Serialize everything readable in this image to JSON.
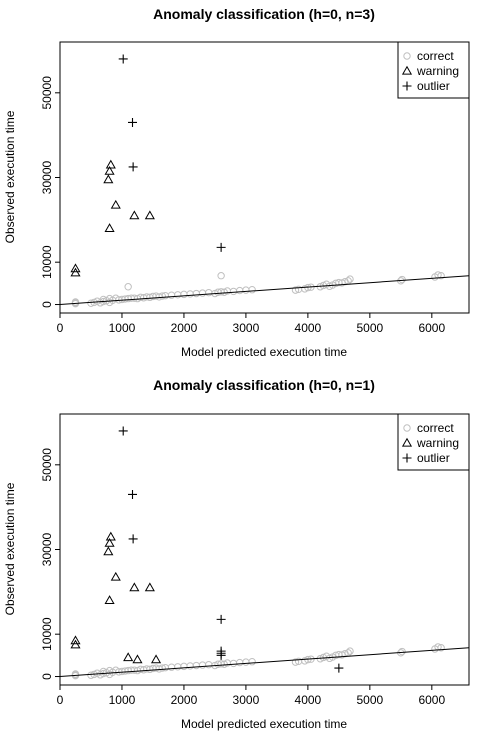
{
  "chart_data": [
    {
      "type": "scatter",
      "title": "Anomaly classification (h=0, n=3)",
      "xlabel": "Model predicted execution time",
      "ylabel": "Observed execution time",
      "xlim": [
        0,
        6600
      ],
      "ylim": [
        -2000,
        62000
      ],
      "xticks": [
        0,
        1000,
        2000,
        3000,
        4000,
        5000,
        6000
      ],
      "xtick_labels": [
        "0",
        "1000",
        "2000",
        "3000",
        "4000",
        "5000",
        "6000"
      ],
      "yticks": [
        0,
        10000,
        30000,
        50000
      ],
      "ytick_labels": [
        "0",
        "10000",
        "30000",
        "50000"
      ],
      "legend": {
        "position": "top-right",
        "entries": [
          "correct",
          "warning",
          "outlier"
        ]
      },
      "fit_line": {
        "x": [
          0,
          6600
        ],
        "y": [
          0,
          6800
        ]
      },
      "series": [
        {
          "name": "correct",
          "marker": "circle",
          "color": "#c0c0c0",
          "x": [
            250,
            250,
            250,
            500,
            550,
            600,
            650,
            700,
            700,
            750,
            800,
            800,
            850,
            900,
            950,
            1000,
            1050,
            1100,
            1100,
            1150,
            1200,
            1250,
            1300,
            1350,
            1400,
            1450,
            1500,
            1550,
            1600,
            1650,
            1700,
            1800,
            1900,
            2000,
            2100,
            2200,
            2300,
            2400,
            2500,
            2550,
            2600,
            2600,
            2650,
            2700,
            2800,
            2900,
            3000,
            3100,
            3800,
            3850,
            3950,
            4000,
            4050,
            4200,
            4250,
            4300,
            4350,
            4400,
            4450,
            4500,
            4550,
            4600,
            4650,
            4680,
            5500,
            5520,
            6050,
            6100,
            6150
          ],
          "y": [
            200,
            400,
            600,
            300,
            500,
            800,
            400,
            1200,
            700,
            900,
            500,
            1400,
            1000,
            1500,
            1100,
            1200,
            1300,
            1400,
            4200,
            1500,
            1500,
            1400,
            1700,
            1600,
            1800,
            1700,
            1900,
            2000,
            1800,
            2000,
            2100,
            2200,
            2300,
            2400,
            2500,
            2600,
            2700,
            2800,
            2600,
            2900,
            3000,
            6800,
            2900,
            3200,
            3100,
            3300,
            3400,
            3500,
            3400,
            3600,
            3700,
            4000,
            4100,
            4200,
            4500,
            4800,
            4300,
            4600,
            5000,
            5200,
            5100,
            5400,
            5600,
            6000,
            5600,
            5900,
            6500,
            7000,
            6800
          ]
        },
        {
          "name": "warning",
          "marker": "triangle",
          "color": "#000000",
          "x": [
            250,
            250,
            780,
            800,
            820,
            900,
            800,
            1200,
            1450
          ],
          "y": [
            7500,
            8500,
            29500,
            31500,
            33000,
            23500,
            18000,
            21000,
            21000
          ]
        },
        {
          "name": "outlier",
          "marker": "plus",
          "color": "#000000",
          "x": [
            1020,
            1170,
            1180,
            2600
          ],
          "y": [
            58000,
            43000,
            32500,
            13500
          ]
        }
      ]
    },
    {
      "type": "scatter",
      "title": "Anomaly classification (h=0, n=1)",
      "xlabel": "Model predicted execution time",
      "ylabel": "Observed execution time",
      "xlim": [
        0,
        6600
      ],
      "ylim": [
        -2000,
        62000
      ],
      "xticks": [
        0,
        1000,
        2000,
        3000,
        4000,
        5000,
        6000
      ],
      "xtick_labels": [
        "0",
        "1000",
        "2000",
        "3000",
        "4000",
        "5000",
        "6000"
      ],
      "yticks": [
        0,
        10000,
        30000,
        50000
      ],
      "ytick_labels": [
        "0",
        "10000",
        "30000",
        "50000"
      ],
      "legend": {
        "position": "top-right",
        "entries": [
          "correct",
          "warning",
          "outlier"
        ]
      },
      "fit_line": {
        "x": [
          0,
          6600
        ],
        "y": [
          0,
          6800
        ]
      },
      "series": [
        {
          "name": "correct",
          "marker": "circle",
          "color": "#c0c0c0",
          "x": [
            250,
            250,
            250,
            500,
            550,
            600,
            650,
            700,
            700,
            750,
            800,
            800,
            850,
            900,
            950,
            1000,
            1050,
            1100,
            1150,
            1200,
            1250,
            1300,
            1350,
            1400,
            1450,
            1500,
            1550,
            1600,
            1650,
            1700,
            1800,
            1900,
            2000,
            2100,
            2200,
            2300,
            2400,
            2500,
            2550,
            2600,
            2650,
            2700,
            2800,
            2900,
            3000,
            3100,
            3800,
            3850,
            3950,
            4000,
            4050,
            4200,
            4250,
            4300,
            4350,
            4400,
            4450,
            4500,
            4550,
            4600,
            4650,
            4680,
            5500,
            5520,
            6050,
            6100,
            6150
          ],
          "y": [
            200,
            400,
            600,
            300,
            500,
            800,
            400,
            1200,
            700,
            900,
            500,
            1400,
            1000,
            1500,
            1100,
            1200,
            1300,
            1400,
            1500,
            1500,
            1400,
            1700,
            1600,
            1800,
            1700,
            1900,
            2000,
            1800,
            2000,
            2100,
            2200,
            2300,
            2400,
            2500,
            2600,
            2700,
            2800,
            2600,
            2900,
            3000,
            2900,
            3200,
            3100,
            3300,
            3400,
            3500,
            3400,
            3600,
            3700,
            4000,
            4100,
            4200,
            4500,
            4800,
            4300,
            4600,
            5000,
            5200,
            5100,
            5400,
            5600,
            6000,
            5600,
            5900,
            6500,
            7000,
            6800
          ]
        },
        {
          "name": "warning",
          "marker": "triangle",
          "color": "#000000",
          "x": [
            250,
            250,
            780,
            800,
            820,
            900,
            800,
            1200,
            1450,
            1100,
            1250,
            1550
          ],
          "y": [
            7500,
            8500,
            29500,
            31500,
            33000,
            23500,
            18000,
            21000,
            21000,
            4500,
            4000,
            4000
          ]
        },
        {
          "name": "outlier",
          "marker": "plus",
          "color": "#000000",
          "x": [
            1020,
            1170,
            1180,
            2600,
            2600,
            2600,
            2600,
            4500
          ],
          "y": [
            58000,
            43000,
            32500,
            13500,
            6000,
            5500,
            5000,
            2000
          ]
        }
      ]
    }
  ]
}
